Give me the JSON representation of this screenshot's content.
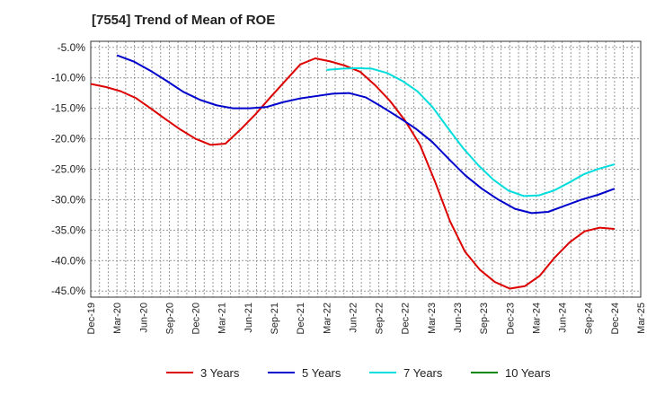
{
  "chart_data": {
    "type": "line",
    "title": "[7554]  Trend of Mean of ROE",
    "xlabel": "",
    "ylabel": "",
    "ylim": [
      -46.0,
      -4.0
    ],
    "y_ticks": [
      -5.0,
      -10.0,
      -15.0,
      -20.0,
      -25.0,
      -30.0,
      -35.0,
      -40.0,
      -45.0
    ],
    "y_tick_labels": [
      "-5.0%",
      "-10.0%",
      "-15.0%",
      "-20.0%",
      "-25.0%",
      "-30.0%",
      "-35.0%",
      "-40.0%",
      "-45.0%"
    ],
    "x_tick_labels": [
      "Dec-19",
      "Mar-20",
      "Jun-20",
      "Sep-20",
      "Dec-20",
      "Mar-21",
      "Jun-21",
      "Sep-21",
      "Dec-21",
      "Mar-22",
      "Jun-22",
      "Sep-22",
      "Dec-22",
      "Mar-23",
      "Jun-23",
      "Sep-23",
      "Dec-23",
      "Mar-24",
      "Jun-24",
      "Sep-24",
      "Dec-24",
      "Mar-25"
    ],
    "grid": true,
    "legend_position": "bottom",
    "series": [
      {
        "name": "3 Years",
        "color": "#dd0000",
        "start_index": 0,
        "values": [
          -11.0,
          -11.5,
          -12.2,
          -13.3,
          -15.0,
          -16.8,
          -18.5,
          -20.0,
          -21.0,
          -20.8,
          -18.5,
          -16.0,
          -13.2,
          -10.5,
          -7.8,
          -6.8,
          -7.3,
          -8.0,
          -9.0,
          -11.2,
          -13.8,
          -17.0,
          -21.0,
          -27.0,
          -33.5,
          -38.5,
          -41.5,
          -43.5,
          -44.6,
          -44.2,
          -42.5,
          -39.5,
          -37.0,
          -35.2,
          -34.6,
          -34.8
        ]
      },
      {
        "name": "5 Years",
        "color": "#0000cc",
        "start_index": 1,
        "values": [
          -6.3,
          -7.3,
          -8.8,
          -10.5,
          -12.3,
          -13.6,
          -14.5,
          -15.0,
          -15.0,
          -14.8,
          -14.0,
          -13.4,
          -13.0,
          -12.6,
          -12.5,
          -13.2,
          -14.8,
          -16.5,
          -18.3,
          -20.5,
          -23.3,
          -26.0,
          -28.2,
          -30.0,
          -31.5,
          -32.2,
          -32.0,
          -31.0,
          -30.0,
          -29.2,
          -28.2
        ]
      },
      {
        "name": "7 Years",
        "color": "#00dddd",
        "start_index": 9,
        "values": [
          -8.7,
          -8.5,
          -8.4,
          -8.5,
          -9.2,
          -10.5,
          -12.2,
          -14.8,
          -18.2,
          -21.5,
          -24.3,
          -26.7,
          -28.5,
          -29.4,
          -29.3,
          -28.5,
          -27.2,
          -25.8,
          -24.9,
          -24.2
        ]
      },
      {
        "name": "10 Years",
        "color": "#008800",
        "start_index": 0,
        "values": []
      }
    ]
  }
}
